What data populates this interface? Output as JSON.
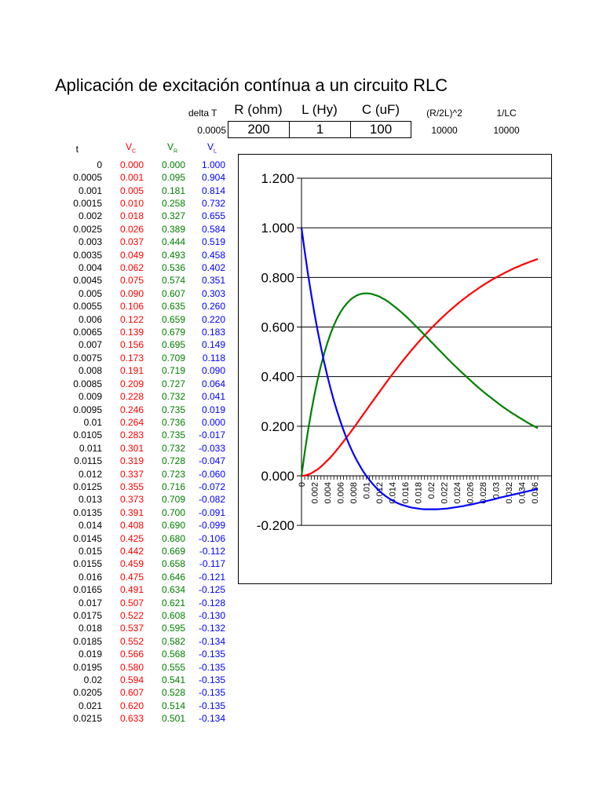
{
  "title": "Aplicación de excitación contínua a un circuito RLC",
  "params": {
    "delta_t_label": "delta T",
    "delta_t_value": "0.0005",
    "r_label": "R (ohm)",
    "r_value": "200",
    "l_label": "L (Hy)",
    "l_value": "1",
    "c_label": "C (uF)",
    "c_value": "100",
    "r2l_label": "(R/2L)^2",
    "r2l_value": "10000",
    "lc_label": "1/LC",
    "lc_value": "10000"
  },
  "table": {
    "headers": {
      "t": "t",
      "vc": "V",
      "vc_sub": "C",
      "vr": "V",
      "vr_sub": "R",
      "vl": "V",
      "vl_sub": "L"
    },
    "rows": [
      [
        "0",
        "0.000",
        "0.000",
        "1.000"
      ],
      [
        "0.0005",
        "0.001",
        "0.095",
        "0.904"
      ],
      [
        "0.001",
        "0.005",
        "0.181",
        "0.814"
      ],
      [
        "0.0015",
        "0.010",
        "0.258",
        "0.732"
      ],
      [
        "0.002",
        "0.018",
        "0.327",
        "0.655"
      ],
      [
        "0.0025",
        "0.026",
        "0.389",
        "0.584"
      ],
      [
        "0.003",
        "0.037",
        "0.444",
        "0.519"
      ],
      [
        "0.0035",
        "0.049",
        "0.493",
        "0.458"
      ],
      [
        "0.004",
        "0.062",
        "0.536",
        "0.402"
      ],
      [
        "0.0045",
        "0.075",
        "0.574",
        "0.351"
      ],
      [
        "0.005",
        "0.090",
        "0.607",
        "0.303"
      ],
      [
        "0.0055",
        "0.106",
        "0.635",
        "0.260"
      ],
      [
        "0.006",
        "0.122",
        "0.659",
        "0.220"
      ],
      [
        "0.0065",
        "0.139",
        "0.679",
        "0.183"
      ],
      [
        "0.007",
        "0.156",
        "0.695",
        "0.149"
      ],
      [
        "0.0075",
        "0.173",
        "0.709",
        "0.118"
      ],
      [
        "0.008",
        "0.191",
        "0.719",
        "0.090"
      ],
      [
        "0.0085",
        "0.209",
        "0.727",
        "0.064"
      ],
      [
        "0.009",
        "0.228",
        "0.732",
        "0.041"
      ],
      [
        "0.0095",
        "0.246",
        "0.735",
        "0.019"
      ],
      [
        "0.01",
        "0.264",
        "0.736",
        "0.000"
      ],
      [
        "0.0105",
        "0.283",
        "0.735",
        "-0.017"
      ],
      [
        "0.011",
        "0.301",
        "0.732",
        "-0.033"
      ],
      [
        "0.0115",
        "0.319",
        "0.728",
        "-0.047"
      ],
      [
        "0.012",
        "0.337",
        "0.723",
        "-0.060"
      ],
      [
        "0.0125",
        "0.355",
        "0.716",
        "-0.072"
      ],
      [
        "0.013",
        "0.373",
        "0.709",
        "-0.082"
      ],
      [
        "0.0135",
        "0.391",
        "0.700",
        "-0.091"
      ],
      [
        "0.014",
        "0.408",
        "0.690",
        "-0.099"
      ],
      [
        "0.0145",
        "0.425",
        "0.680",
        "-0.106"
      ],
      [
        "0.015",
        "0.442",
        "0.669",
        "-0.112"
      ],
      [
        "0.0155",
        "0.459",
        "0.658",
        "-0.117"
      ],
      [
        "0.016",
        "0.475",
        "0.646",
        "-0.121"
      ],
      [
        "0.0165",
        "0.491",
        "0.634",
        "-0.125"
      ],
      [
        "0.017",
        "0.507",
        "0.621",
        "-0.128"
      ],
      [
        "0.0175",
        "0.522",
        "0.608",
        "-0.130"
      ],
      [
        "0.018",
        "0.537",
        "0.595",
        "-0.132"
      ],
      [
        "0.0185",
        "0.552",
        "0.582",
        "-0.134"
      ],
      [
        "0.019",
        "0.566",
        "0.568",
        "-0.135"
      ],
      [
        "0.0195",
        "0.580",
        "0.555",
        "-0.135"
      ],
      [
        "0.02",
        "0.594",
        "0.541",
        "-0.135"
      ],
      [
        "0.0205",
        "0.607",
        "0.528",
        "-0.135"
      ],
      [
        "0.021",
        "0.620",
        "0.514",
        "-0.135"
      ],
      [
        "0.0215",
        "0.633",
        "0.501",
        "-0.134"
      ]
    ]
  },
  "chart_data": {
    "type": "line",
    "title": "",
    "xlabel": "",
    "ylabel": "",
    "ylim": [
      -0.2,
      1.2
    ],
    "y_ticks": [
      "-0.200",
      "0.000",
      "0.200",
      "0.400",
      "0.600",
      "0.800",
      "1.000",
      "1.200"
    ],
    "x_tick_labels": [
      "0",
      "0.002",
      "0.004",
      "0.006",
      "0.008",
      "0.01",
      "0.012",
      "0.014",
      "0.016",
      "0.018",
      "0.02",
      "0.022",
      "0.024",
      "0.026",
      "0.028",
      "0.03",
      "0.032",
      "0.034",
      "0.036"
    ],
    "x_step": 0.0005,
    "x_range_shown": [
      0,
      0.0365
    ],
    "grid": "horizontal",
    "legend": "none",
    "series": [
      {
        "color": "#ff0000",
        "values": [
          0.0,
          0.001,
          0.005,
          0.01,
          0.018,
          0.026,
          0.037,
          0.049,
          0.062,
          0.075,
          0.09,
          0.106,
          0.122,
          0.139,
          0.156,
          0.173,
          0.191,
          0.209,
          0.228,
          0.246,
          0.264,
          0.283,
          0.301,
          0.319,
          0.337,
          0.355,
          0.373,
          0.391,
          0.408,
          0.425,
          0.442,
          0.459,
          0.475,
          0.491,
          0.507,
          0.522,
          0.537,
          0.552,
          0.566,
          0.58,
          0.594,
          0.607,
          0.62,
          0.633,
          0.645,
          0.657,
          0.669,
          0.68,
          0.691,
          0.702,
          0.712,
          0.722,
          0.732,
          0.741,
          0.75,
          0.759,
          0.768,
          0.776,
          0.784,
          0.792,
          0.799,
          0.806,
          0.813,
          0.82,
          0.826,
          0.833,
          0.839,
          0.844,
          0.85,
          0.855,
          0.86,
          0.865,
          0.87,
          0.874
        ]
      },
      {
        "color": "#008000",
        "values": [
          0.0,
          0.095,
          0.181,
          0.258,
          0.327,
          0.389,
          0.444,
          0.493,
          0.536,
          0.574,
          0.607,
          0.635,
          0.659,
          0.679,
          0.695,
          0.709,
          0.719,
          0.727,
          0.732,
          0.735,
          0.736,
          0.735,
          0.732,
          0.728,
          0.723,
          0.716,
          0.709,
          0.7,
          0.69,
          0.68,
          0.669,
          0.658,
          0.646,
          0.634,
          0.621,
          0.608,
          0.595,
          0.582,
          0.568,
          0.555,
          0.541,
          0.528,
          0.514,
          0.501,
          0.488,
          0.474,
          0.461,
          0.448,
          0.436,
          0.423,
          0.411,
          0.399,
          0.387,
          0.375,
          0.363,
          0.352,
          0.341,
          0.33,
          0.32,
          0.31,
          0.3,
          0.29,
          0.28,
          0.271,
          0.262,
          0.253,
          0.245,
          0.237,
          0.229,
          0.221,
          0.213,
          0.206,
          0.199,
          0.192
        ]
      },
      {
        "color": "#0000ff",
        "values": [
          1.0,
          0.904,
          0.814,
          0.732,
          0.655,
          0.584,
          0.519,
          0.458,
          0.402,
          0.351,
          0.303,
          0.26,
          0.22,
          0.183,
          0.149,
          0.118,
          0.09,
          0.064,
          0.041,
          0.019,
          0.0,
          -0.017,
          -0.033,
          -0.047,
          -0.06,
          -0.072,
          -0.082,
          -0.091,
          -0.099,
          -0.106,
          -0.112,
          -0.117,
          -0.121,
          -0.125,
          -0.128,
          -0.13,
          -0.132,
          -0.134,
          -0.135,
          -0.135,
          -0.135,
          -0.135,
          -0.135,
          -0.134,
          -0.133,
          -0.132,
          -0.13,
          -0.128,
          -0.126,
          -0.124,
          -0.122,
          -0.119,
          -0.117,
          -0.114,
          -0.111,
          -0.108,
          -0.105,
          -0.102,
          -0.099,
          -0.096,
          -0.093,
          -0.089,
          -0.086,
          -0.083,
          -0.08,
          -0.077,
          -0.074,
          -0.071,
          -0.068,
          -0.065,
          -0.062,
          -0.059,
          -0.056,
          -0.053
        ]
      }
    ]
  }
}
